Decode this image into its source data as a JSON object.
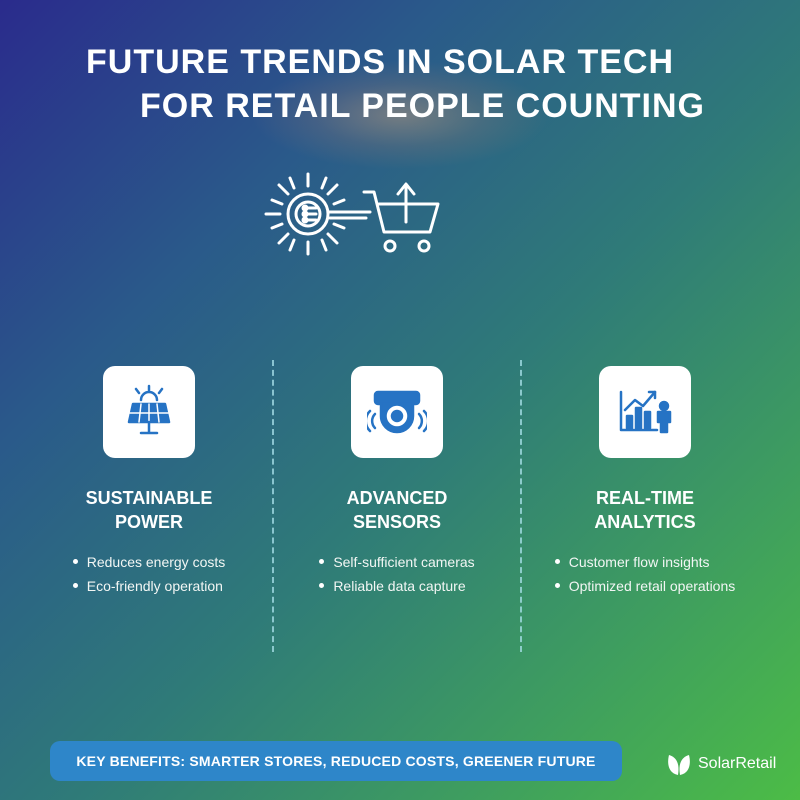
{
  "title": {
    "line1": "FUTURE TRENDS IN SOLAR TECH",
    "line2": "FOR RETAIL PEOPLE COUNTING"
  },
  "hero": {
    "icons": [
      "sun-chip-icon",
      "shopping-cart-up-arrow-icon"
    ]
  },
  "columns": [
    {
      "icon": "solar-panel-icon",
      "heading_line1": "SUSTAINABLE",
      "heading_line2": "POWER",
      "bullets": [
        "Reduces energy costs",
        "Eco-friendly operation"
      ]
    },
    {
      "icon": "camera-sensor-icon",
      "heading_line1": "ADVANCED",
      "heading_line2": "SENSORS",
      "bullets": [
        "Self-sufficient cameras",
        "Reliable data capture"
      ]
    },
    {
      "icon": "analytics-chart-person-icon",
      "heading_line1": "REAL-TIME",
      "heading_line2": "ANALYTICS",
      "bullets": [
        "Customer flow insights",
        "Optimized retail operations"
      ]
    }
  ],
  "footer": {
    "text": "KEY BENEFITS: SMARTER STORES, REDUCED COSTS, GREENER FUTURE"
  },
  "brand": {
    "name": "SolarRetail",
    "icon": "leaf-logo-icon"
  },
  "colors": {
    "accent_blue": "#2e86c9",
    "icon_blue": "#2673c4",
    "bg_start": "#2a2b8c",
    "bg_end": "#4cbc46"
  }
}
